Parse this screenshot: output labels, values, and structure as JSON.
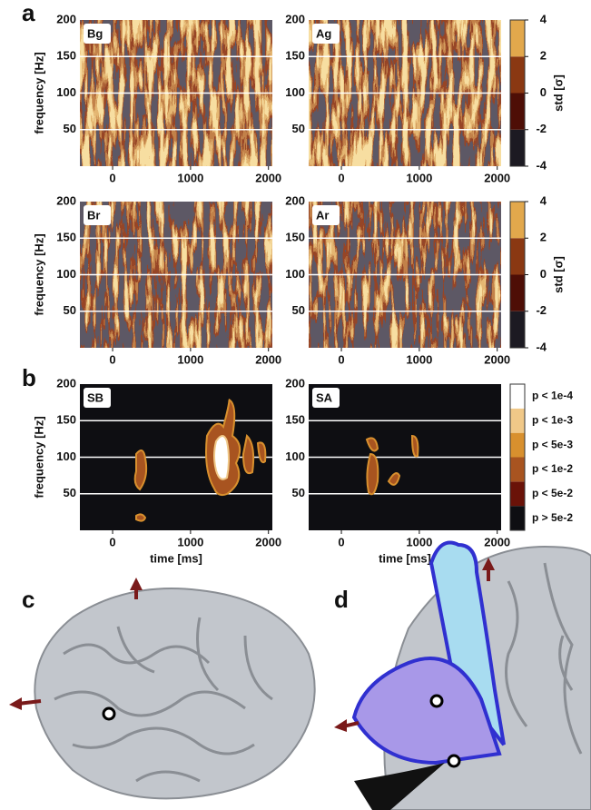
{
  "panels": [
    "a",
    "b",
    "c",
    "d"
  ],
  "chart_data": [
    {
      "type": "heatmap",
      "label": "Bg",
      "xlim": [
        -420,
        2050
      ],
      "ylim": [
        0,
        200
      ],
      "xticks": [
        0,
        1000,
        2000
      ],
      "yticks": [
        50,
        100,
        150,
        200
      ],
      "ylabel": "frequency [Hz]",
      "grid": true
    },
    {
      "type": "heatmap",
      "label": "Ag",
      "xlim": [
        -420,
        2050
      ],
      "ylim": [
        0,
        200
      ],
      "xticks": [
        0,
        1000,
        2000
      ],
      "yticks": [
        50,
        100,
        150,
        200
      ],
      "grid": true
    },
    {
      "type": "heatmap",
      "label": "Br",
      "xlim": [
        -420,
        2050
      ],
      "ylim": [
        0,
        200
      ],
      "xticks": [
        0,
        1000,
        2000
      ],
      "yticks": [
        50,
        100,
        150,
        200
      ],
      "ylabel": "frequency [Hz]",
      "grid": true
    },
    {
      "type": "heatmap",
      "label": "Ar",
      "xlim": [
        -420,
        2050
      ],
      "ylim": [
        0,
        200
      ],
      "xticks": [
        0,
        1000,
        2000
      ],
      "yticks": [
        50,
        100,
        150,
        200
      ],
      "grid": true
    },
    {
      "type": "heatmap",
      "label": "SB",
      "xlim": [
        -420,
        2050
      ],
      "ylim": [
        0,
        200
      ],
      "xticks": [
        0,
        1000,
        2000
      ],
      "yticks": [
        50,
        100,
        150,
        200
      ],
      "ylabel": "frequency [Hz]",
      "xlabel": "time [ms]",
      "grid": true
    },
    {
      "type": "heatmap",
      "label": "SA",
      "xlim": [
        -420,
        2050
      ],
      "ylim": [
        0,
        200
      ],
      "xticks": [
        0,
        1000,
        2000
      ],
      "yticks": [
        50,
        100,
        150,
        200
      ],
      "xlabel": "time [ms]",
      "grid": true
    },
    {
      "type": "colorbar",
      "ylim": [
        -4,
        4
      ],
      "yticks": [
        -4,
        -2,
        0,
        2,
        4
      ],
      "ylabel": "std [σ]",
      "colors": [
        "#1c1a22",
        "#4e0e06",
        "#8a3812",
        "#e2a84c"
      ]
    },
    {
      "type": "colorbar",
      "ylim": [
        -4,
        4
      ],
      "yticks": [
        -4,
        -2,
        0,
        2,
        4
      ],
      "ylabel": "std [σ]",
      "colors": [
        "#1c1a22",
        "#4e0e06",
        "#8a3812",
        "#e2a84c"
      ]
    },
    {
      "type": "legend",
      "categories": [
        "p > 5e-2",
        "p < 5e-2",
        "p < 1e-2",
        "p < 5e-3",
        "p < 1e-3",
        "p < 1e-4"
      ],
      "colors": [
        "#0e0e12",
        "#6a1208",
        "#a85420",
        "#d8902e",
        "#f0c888",
        "#ffffff"
      ]
    }
  ]
}
